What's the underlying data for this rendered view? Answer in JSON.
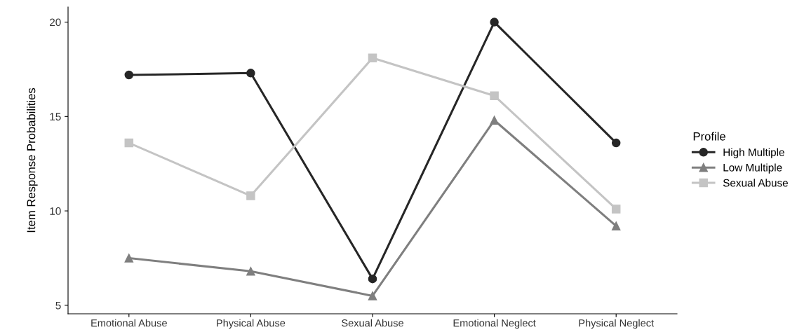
{
  "chart_data": {
    "type": "line",
    "ylabel": "Item Response Probabilities",
    "legend_title": "Profile",
    "categories": [
      "Emotional Abuse",
      "Physical Abuse",
      "Sexual Abuse",
      "Emotional Neglect",
      "Physical Neglect"
    ],
    "series": [
      {
        "name": "High Multiple",
        "color": "#262626",
        "marker": "circle",
        "values": [
          17.2,
          17.3,
          6.4,
          20.0,
          13.6
        ]
      },
      {
        "name": "Low Multiple",
        "color": "#7f7f7f",
        "marker": "triangle",
        "values": [
          7.5,
          6.8,
          5.5,
          14.8,
          9.2
        ]
      },
      {
        "name": "Sexual Abuse",
        "color": "#c4c4c4",
        "marker": "square",
        "values": [
          13.6,
          10.8,
          18.1,
          16.1,
          10.1
        ]
      }
    ],
    "ylim": [
      4.55,
      20.8
    ],
    "yticks": [
      5,
      10,
      15,
      20
    ],
    "grid": false,
    "legend": "right",
    "line_style": "solid"
  }
}
